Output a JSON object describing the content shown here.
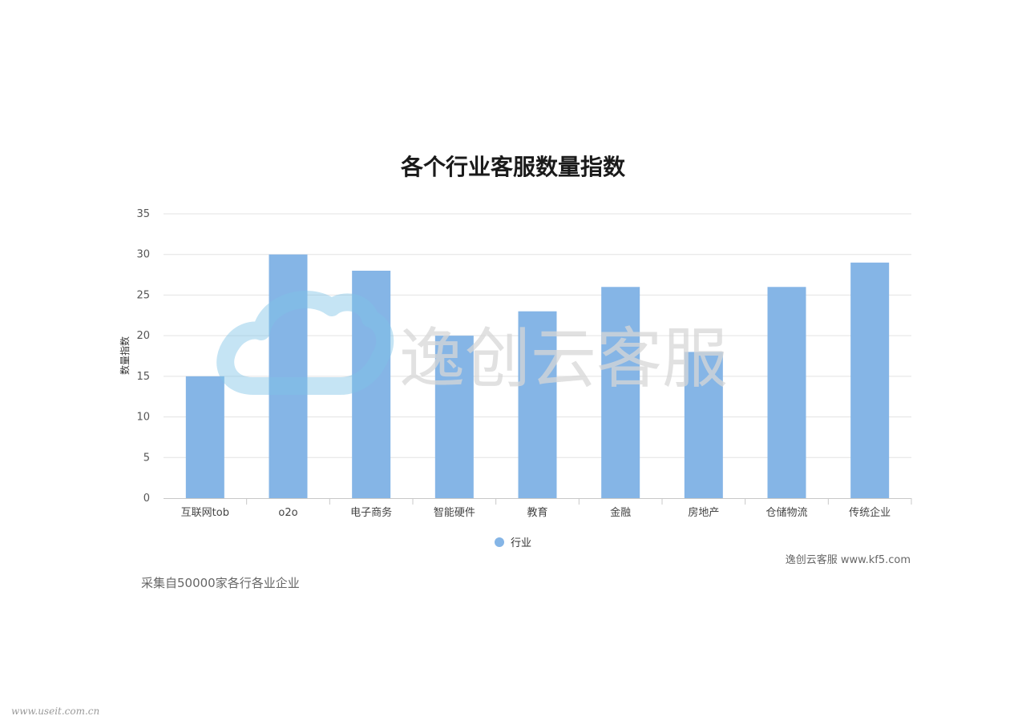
{
  "chart_data": {
    "type": "bar",
    "title": "各个行业客服数量指数",
    "ylabel": "数量指数",
    "xlabel": "",
    "categories": [
      "互联网tob",
      "o2o",
      "电子商务",
      "智能硬件",
      "教育",
      "金融",
      "房地产",
      "仓储物流",
      "传统企业"
    ],
    "series": [
      {
        "name": "行业",
        "values": [
          15,
          30,
          28,
          20,
          23,
          26,
          18,
          26,
          29
        ]
      }
    ],
    "ylim": [
      0,
      35
    ],
    "yticks": [
      0,
      5,
      10,
      15,
      20,
      25,
      30,
      35
    ],
    "grid": true,
    "legend": "bottom-center",
    "colors": {
      "bar": "#85b5e6",
      "grid": "#e3e3e3",
      "axis": "#c8c8c8"
    }
  },
  "credit": "逸创云客服 www.kf5.com",
  "footnote": "采集自50000家各行各业企业",
  "watermark": {
    "text": "逸创云客服",
    "logo_icon": "cloud-logo-icon",
    "logo_color": "#7ec3e6"
  },
  "site_mark": "www.useit.com.cn"
}
